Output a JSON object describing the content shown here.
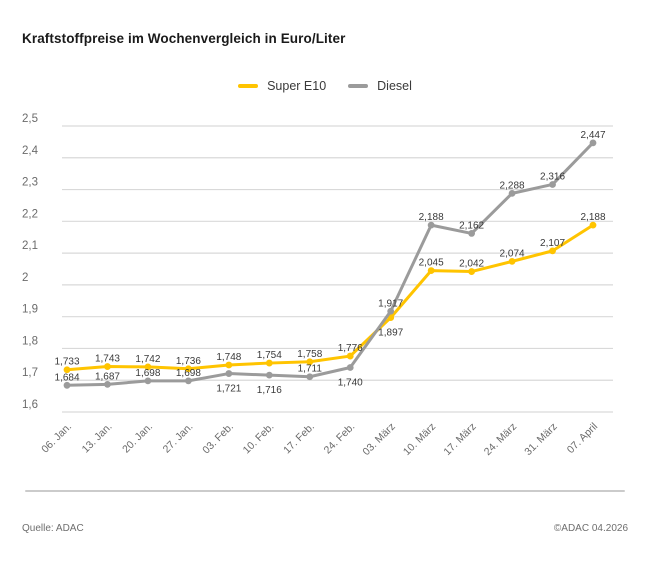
{
  "title": "Kraftstoffpreise im Wochenvergleich in Euro/Liter",
  "chart_data": {
    "type": "line",
    "categories": [
      "06. Jan.",
      "13. Jan.",
      "20. Jan.",
      "27. Jan.",
      "03. Feb.",
      "10. Feb.",
      "17. Feb.",
      "24. Feb.",
      "03. März",
      "10. März",
      "17. März",
      "24. März",
      "31. März",
      "07. April"
    ],
    "series": [
      {
        "name": "Super E10",
        "color": "#FFC400",
        "values": [
          1.733,
          1.743,
          1.742,
          1.736,
          1.748,
          1.754,
          1.758,
          1.776,
          1.897,
          2.045,
          2.042,
          2.074,
          2.107,
          2.188
        ],
        "label_side": [
          "above",
          "above",
          "above",
          "above",
          "above",
          "above",
          "above",
          "above",
          "below",
          "above",
          "above",
          "above",
          "above",
          "above"
        ]
      },
      {
        "name": "Diesel",
        "color": "#9B9B9B",
        "values": [
          1.684,
          1.687,
          1.698,
          1.698,
          1.721,
          1.716,
          1.711,
          1.74,
          1.917,
          2.188,
          2.162,
          2.288,
          2.316,
          2.447
        ],
        "label_side": [
          "above",
          "above",
          "above",
          "above",
          "below",
          "below",
          "above",
          "below",
          "above",
          "above",
          "above",
          "above",
          "above",
          "above"
        ]
      }
    ],
    "title": "Kraftstoffpreise im Wochenvergleich in Euro/Liter",
    "xlabel": "",
    "ylabel": "Euro/Liter",
    "ylim": [
      1.6,
      2.5
    ],
    "ytick_step": 0.1,
    "ytick_labels": [
      "1,6",
      "1,7",
      "1,8",
      "1,9",
      "2",
      "2,1",
      "2,2",
      "2,3",
      "2,4",
      "2,5"
    ],
    "grid": true,
    "legend_position": "top",
    "decimal_separator": ","
  },
  "footer": {
    "source": "Quelle: ADAC",
    "copyright": "©ADAC 04.2026"
  },
  "colors": {
    "grid": "#D9D9D9",
    "axis_text": "#6B6B6B",
    "value_text": "#3A3A3A",
    "title_text": "#1A1A1A",
    "separator": "#CBCBCB",
    "background": "#FFFFFF"
  }
}
